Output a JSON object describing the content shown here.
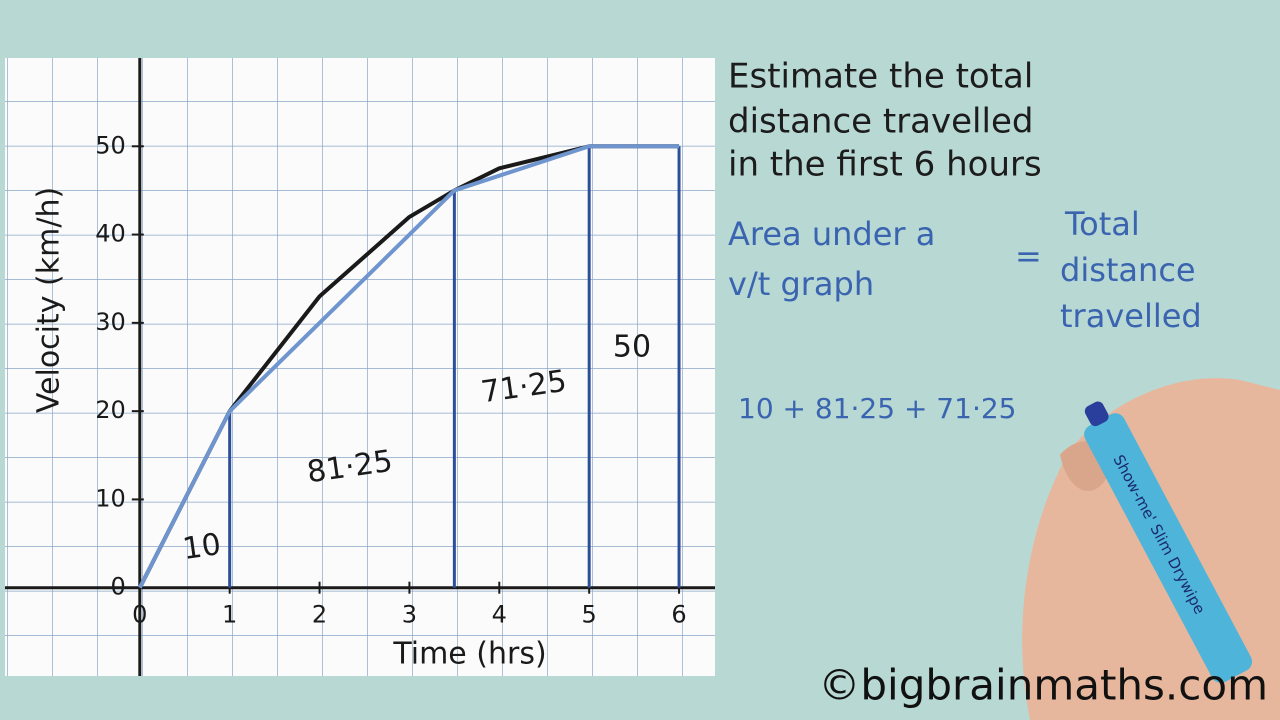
{
  "chart_data": {
    "type": "line",
    "xlabel": "Time (hrs)",
    "ylabel": "Velocity (km/h)",
    "xlim": [
      -1.5,
      6.4
    ],
    "ylim": [
      -10,
      60
    ],
    "xticks": [
      0,
      1,
      2,
      3,
      4,
      5,
      6
    ],
    "yticks": [
      0,
      10,
      20,
      30,
      40,
      50
    ],
    "grid": true,
    "series": [
      {
        "color": "#1a1a1a",
        "x": [
          0,
          1,
          2,
          3,
          3.5,
          4,
          5,
          6
        ],
        "values": [
          0,
          20,
          33,
          42,
          45,
          47.5,
          50,
          50
        ]
      },
      {
        "color": "#6f95cf",
        "x": [
          0,
          1,
          3.5,
          5,
          6
        ],
        "values": [
          0,
          20,
          45,
          50,
          50
        ],
        "drop_color": "#2d4f9a"
      }
    ],
    "annotations": [
      "10",
      "81·25",
      "71·25",
      "50"
    ]
  },
  "notes": {
    "question": [
      "Estimate the total",
      "distance travelled",
      "in the first 6 hours"
    ],
    "rule_left": [
      "Area under a",
      "v/t graph"
    ],
    "equals": "=",
    "rule_right": [
      "Total",
      "distance",
      "travelled"
    ],
    "working": "10 + 81·25 + 71·25",
    "pen_label": "Show-me' Slim Drywipe",
    "watermark": "©bigbrainmaths.com"
  }
}
